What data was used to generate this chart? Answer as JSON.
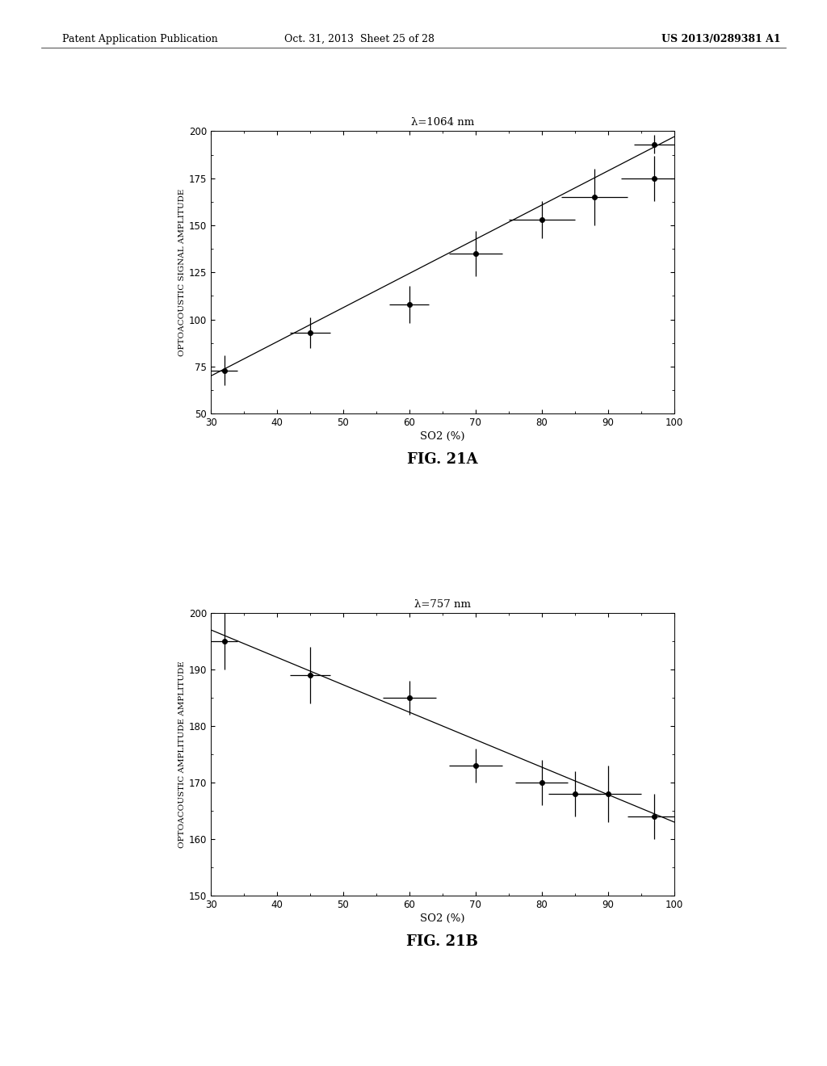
{
  "header_left": "Patent Application Publication",
  "header_center": "Oct. 31, 2013  Sheet 25 of 28",
  "header_right": "US 2013/0289381 A1",
  "fig_a": {
    "title": "λ=1064 nm",
    "xlabel": "SO2 (%)",
    "ylabel": "OPTOACOUSTIC SIGNAL AMPLITUDE",
    "xlim": [
      30,
      100
    ],
    "ylim": [
      50,
      200
    ],
    "xticks": [
      30,
      40,
      50,
      60,
      70,
      80,
      90,
      100
    ],
    "yticks": [
      50,
      75,
      100,
      125,
      150,
      175,
      200
    ],
    "data_x": [
      32,
      45,
      60,
      70,
      80,
      88,
      97
    ],
    "data_y": [
      73,
      93,
      108,
      135,
      153,
      165,
      175
    ],
    "xerr": [
      2,
      3,
      3,
      4,
      5,
      5,
      5
    ],
    "yerr": [
      8,
      8,
      10,
      12,
      10,
      15,
      12
    ],
    "extra_x": [
      97
    ],
    "extra_y": [
      193
    ],
    "extra_xerr": [
      3
    ],
    "extra_yerr": [
      5
    ],
    "fit_x": [
      30,
      100
    ],
    "fit_y": [
      70,
      197
    ],
    "caption": "FIG. 21A"
  },
  "fig_b": {
    "title": "λ=757 nm",
    "xlabel": "SO2 (%)",
    "ylabel": "OPTOACOUSTIC AMPLITUDE AMPLITUDE",
    "xlim": [
      30,
      100
    ],
    "ylim": [
      150,
      200
    ],
    "xticks": [
      30,
      40,
      50,
      60,
      70,
      80,
      90,
      100
    ],
    "yticks": [
      150,
      160,
      170,
      180,
      190,
      200
    ],
    "data_x": [
      32,
      45,
      60,
      70,
      80,
      85,
      90,
      97
    ],
    "data_y": [
      195,
      189,
      185,
      173,
      170,
      168,
      168,
      164
    ],
    "xerr": [
      2,
      3,
      4,
      4,
      4,
      4,
      5,
      4
    ],
    "yerr": [
      5,
      5,
      3,
      3,
      4,
      4,
      5,
      4
    ],
    "fit_x": [
      30,
      100
    ],
    "fit_y": [
      197,
      163
    ],
    "caption": "FIG. 21B"
  },
  "bg_color": "#ffffff",
  "text_color": "#000000"
}
